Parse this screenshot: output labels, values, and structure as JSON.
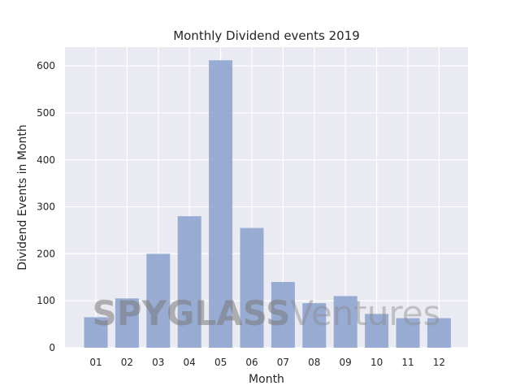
{
  "chart_data": {
    "type": "bar",
    "title": "Monthly Dividend events 2019",
    "xlabel": "Month",
    "ylabel": "Dividend Events in Month",
    "categories": [
      "01",
      "02",
      "03",
      "04",
      "05",
      "06",
      "07",
      "08",
      "09",
      "10",
      "11",
      "12"
    ],
    "values": [
      65,
      105,
      200,
      280,
      612,
      255,
      140,
      95,
      110,
      72,
      63,
      63
    ],
    "ylim": [
      0,
      640
    ],
    "yticks": [
      0,
      100,
      200,
      300,
      400,
      500,
      600
    ],
    "grid": true,
    "legend": "none",
    "colors": {
      "bar": "#8fa5cf",
      "plot_background": "#eaeaf2",
      "grid": "#ffffff"
    }
  },
  "watermark": {
    "strong": "SPYGLASS",
    "light": "Ventures"
  }
}
